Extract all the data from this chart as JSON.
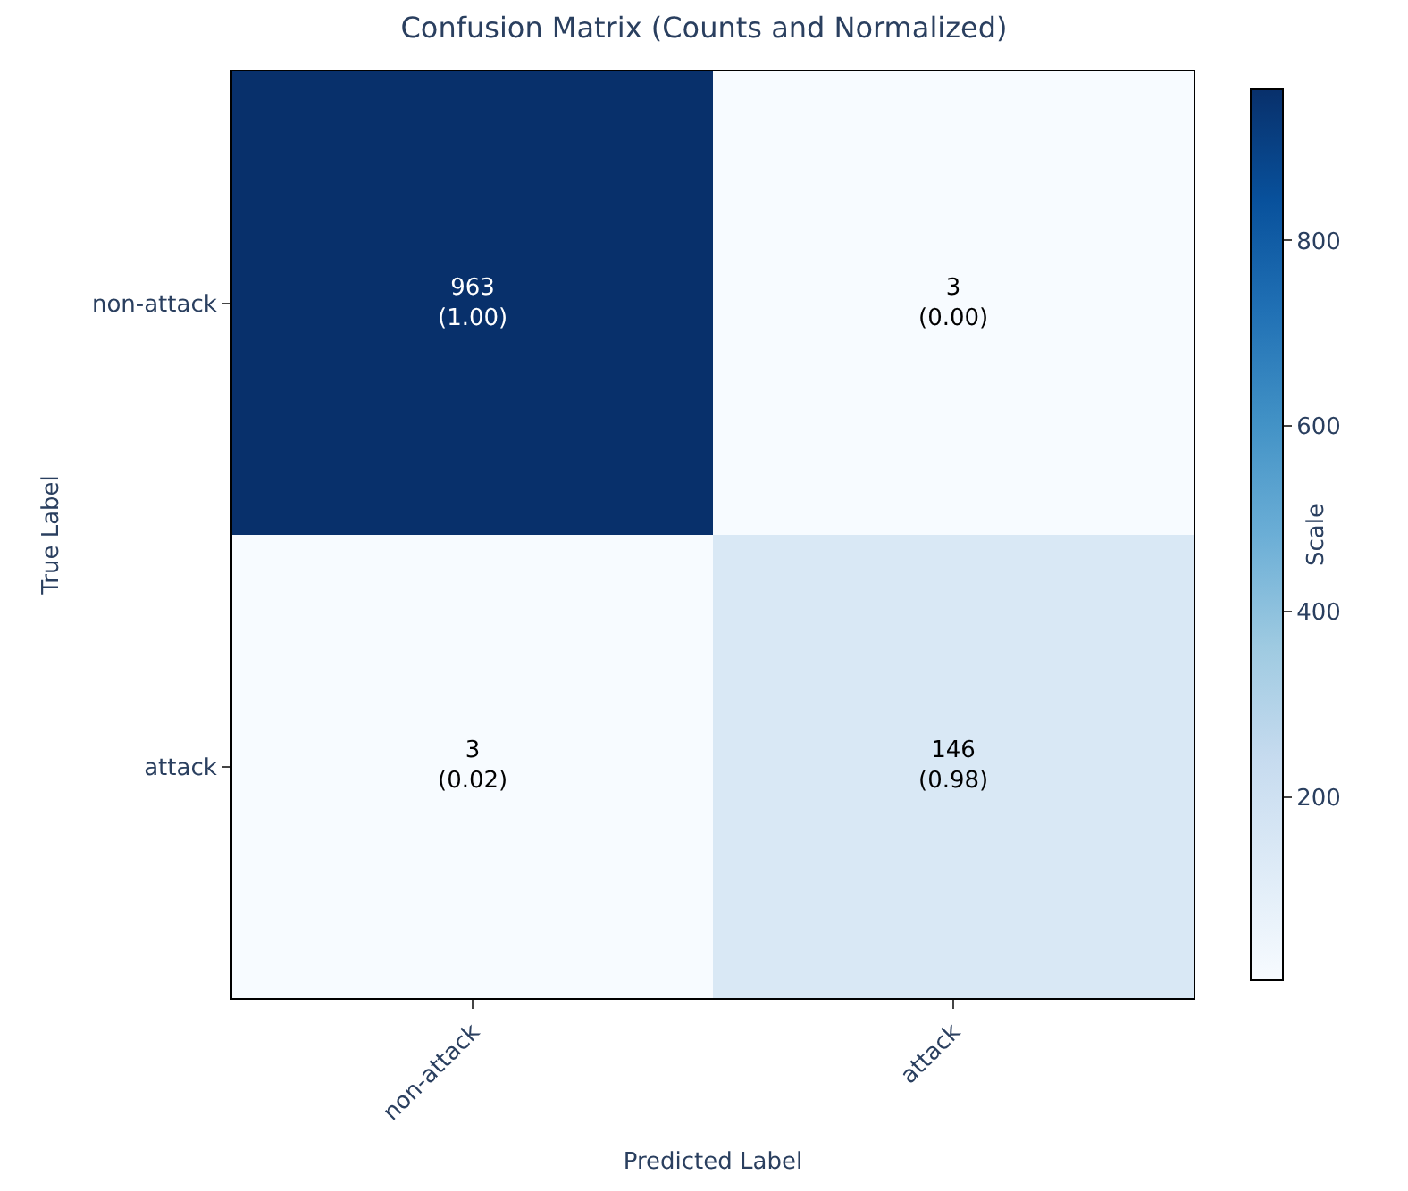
{
  "chart_data": {
    "type": "heatmap",
    "title": "Confusion Matrix (Counts and Normalized)",
    "xlabel": "Predicted Label",
    "ylabel": "True Label",
    "clabel": "Scale",
    "categories": [
      "non-attack",
      "attack"
    ],
    "y_categories": [
      "non-attack",
      "attack"
    ],
    "cells": [
      [
        963,
        3
      ],
      [
        3,
        146
      ]
    ],
    "cell_labels": [
      [
        "963\n(1.00)",
        "3\n(0.00)"
      ],
      [
        "3\n(0.02)",
        "146\n(0.98)"
      ]
    ],
    "clim": [
      3,
      963
    ],
    "cticks": [
      200,
      400,
      600,
      800
    ]
  }
}
